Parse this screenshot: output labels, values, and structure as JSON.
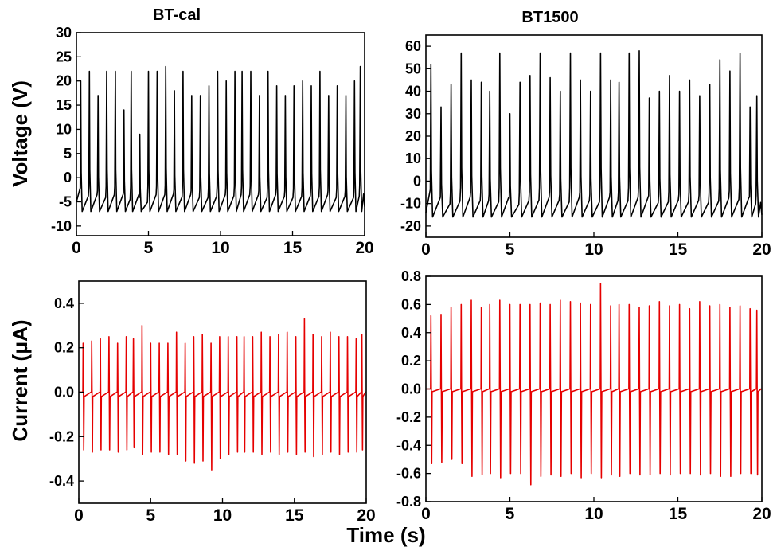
{
  "labels": {
    "voltage_ylabel": "Voltage (V)",
    "current_ylabel": "Current (μA)",
    "time_xlabel": "Time (s)"
  },
  "chart_data": [
    {
      "type": "line",
      "title": "BT-cal",
      "xlabel": "",
      "ylabel": "Voltage (V)",
      "xlim": [
        0,
        20
      ],
      "ylim": [
        -12,
        30
      ],
      "xticks": [
        0,
        5,
        10,
        15,
        20
      ],
      "yticks": [
        -10,
        -5,
        0,
        5,
        10,
        15,
        20,
        25,
        30
      ],
      "color": "#000000",
      "peak_times": [
        0.3,
        0.9,
        1.5,
        2.1,
        2.7,
        3.3,
        3.8,
        4.4,
        5.0,
        5.6,
        6.2,
        6.8,
        7.4,
        8.0,
        8.6,
        9.2,
        9.8,
        10.4,
        11.0,
        11.5,
        12.1,
        12.7,
        13.3,
        13.9,
        14.5,
        15.1,
        15.7,
        16.3,
        16.9,
        17.5,
        18.1,
        18.7,
        19.3,
        19.7
      ],
      "peak_values": [
        20,
        22,
        17,
        22,
        22,
        14,
        22,
        9,
        22,
        22,
        23,
        18,
        22,
        17,
        17,
        19,
        22,
        20,
        22,
        22,
        22,
        17,
        22,
        19,
        17,
        19,
        20,
        19,
        22,
        17,
        19,
        17,
        20,
        23
      ],
      "trough_value": -7
    },
    {
      "type": "line",
      "title": "BT1500",
      "xlabel": "",
      "ylabel": "",
      "xlim": [
        0,
        20
      ],
      "ylim": [
        -25,
        65
      ],
      "xticks": [
        0,
        5,
        10,
        15,
        20
      ],
      "yticks": [
        -20,
        -10,
        0,
        10,
        20,
        30,
        40,
        50,
        60
      ],
      "color": "#000000",
      "peak_times": [
        0.3,
        0.9,
        1.5,
        2.1,
        2.7,
        3.3,
        3.8,
        4.4,
        5.0,
        5.6,
        6.2,
        6.8,
        7.4,
        8.0,
        8.6,
        9.2,
        9.8,
        10.4,
        11.0,
        11.5,
        12.1,
        12.7,
        13.3,
        13.9,
        14.5,
        15.1,
        15.7,
        16.3,
        16.9,
        17.5,
        18.1,
        18.7,
        19.3,
        19.7
      ],
      "peak_values": [
        52,
        33,
        43,
        57,
        45,
        44,
        40,
        57,
        30,
        44,
        47,
        57,
        46,
        40,
        57,
        45,
        40,
        57,
        45,
        44,
        57,
        58,
        37,
        40,
        47,
        40,
        45,
        38,
        43,
        54,
        49,
        57,
        33,
        38
      ],
      "trough_value": -16
    },
    {
      "type": "line",
      "title": "",
      "xlabel": "",
      "ylabel": "Current (μA)",
      "xlim": [
        0,
        20
      ],
      "ylim": [
        -0.5,
        0.5
      ],
      "xticks": [
        0,
        5,
        10,
        15,
        20
      ],
      "yticks": [
        -0.4,
        -0.2,
        0.0,
        0.2,
        0.4
      ],
      "color": "#e60000",
      "peak_times": [
        0.3,
        0.9,
        1.5,
        2.1,
        2.7,
        3.3,
        3.8,
        4.4,
        5.0,
        5.6,
        6.2,
        6.8,
        7.4,
        8.0,
        8.6,
        9.2,
        9.8,
        10.4,
        11.0,
        11.5,
        12.1,
        12.7,
        13.3,
        13.9,
        14.5,
        15.1,
        15.7,
        16.3,
        16.9,
        17.5,
        18.1,
        18.7,
        19.3,
        19.7
      ],
      "peak_values": [
        0.22,
        0.23,
        0.24,
        0.25,
        0.22,
        0.25,
        0.24,
        0.3,
        0.22,
        0.22,
        0.22,
        0.27,
        0.22,
        0.25,
        0.26,
        0.22,
        0.25,
        0.25,
        0.25,
        0.25,
        0.25,
        0.27,
        0.25,
        0.26,
        0.27,
        0.25,
        0.33,
        0.26,
        0.25,
        0.27,
        0.25,
        0.25,
        0.24,
        0.26
      ],
      "trough_values": [
        -0.26,
        -0.27,
        -0.26,
        -0.26,
        -0.27,
        -0.26,
        -0.25,
        -0.28,
        -0.27,
        -0.27,
        -0.28,
        -0.28,
        -0.31,
        -0.32,
        -0.31,
        -0.35,
        -0.3,
        -0.28,
        -0.27,
        -0.27,
        -0.27,
        -0.28,
        -0.27,
        -0.28,
        -0.27,
        -0.28,
        -0.27,
        -0.29,
        -0.28,
        -0.27,
        -0.28,
        -0.27,
        -0.27,
        -0.26
      ]
    },
    {
      "type": "line",
      "title": "",
      "xlabel": "",
      "ylabel": "",
      "xlim": [
        0,
        20
      ],
      "ylim": [
        -0.8,
        0.8
      ],
      "xticks": [
        0,
        5,
        10,
        15,
        20
      ],
      "yticks": [
        -0.8,
        -0.6,
        -0.4,
        -0.2,
        0.0,
        0.2,
        0.4,
        0.6,
        0.8
      ],
      "color": "#e60000",
      "peak_times": [
        0.3,
        0.9,
        1.5,
        2.1,
        2.7,
        3.3,
        3.8,
        4.4,
        5.0,
        5.6,
        6.2,
        6.8,
        7.4,
        8.0,
        8.6,
        9.2,
        9.8,
        10.4,
        11.0,
        11.5,
        12.1,
        12.7,
        13.3,
        13.9,
        14.5,
        15.1,
        15.7,
        16.3,
        16.9,
        17.5,
        18.1,
        18.7,
        19.3,
        19.7
      ],
      "peak_values": [
        0.52,
        0.53,
        0.58,
        0.6,
        0.63,
        0.58,
        0.6,
        0.63,
        0.6,
        0.6,
        0.6,
        0.61,
        0.6,
        0.63,
        0.62,
        0.61,
        0.6,
        0.75,
        0.59,
        0.6,
        0.6,
        0.58,
        0.59,
        0.62,
        0.59,
        0.6,
        0.57,
        0.62,
        0.59,
        0.6,
        0.58,
        0.59,
        0.57,
        0.56
      ],
      "trough_values": [
        -0.53,
        -0.52,
        -0.5,
        -0.53,
        -0.62,
        -0.61,
        -0.6,
        -0.63,
        -0.6,
        -0.6,
        -0.68,
        -0.62,
        -0.61,
        -0.62,
        -0.6,
        -0.63,
        -0.6,
        -0.63,
        -0.61,
        -0.62,
        -0.6,
        -0.61,
        -0.61,
        -0.6,
        -0.61,
        -0.6,
        -0.6,
        -0.61,
        -0.6,
        -0.62,
        -0.62,
        -0.6,
        -0.6,
        -0.61
      ]
    }
  ]
}
